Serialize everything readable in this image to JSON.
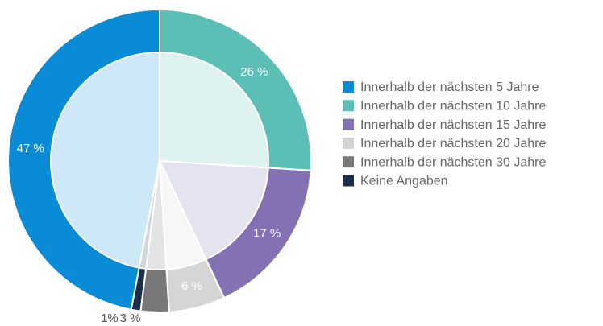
{
  "chart_data": {
    "type": "pie",
    "categories": [
      "Innerhalb der nächsten 5 Jahre",
      "Innerhalb der nächsten 10 Jahre",
      "Innerhalb der nächsten 15 Jahre",
      "Innerhalb der nächsten 20 Jahre",
      "Innerhalb der nächsten 30 Jahre",
      "Keine Angaben"
    ],
    "values": [
      47,
      26,
      17,
      6,
      3,
      1
    ],
    "value_labels": [
      "47 %",
      "26 %",
      "17 %",
      "6 %",
      "3 %",
      "1%"
    ],
    "colors": [
      "#0a8bd6",
      "#5bbfb5",
      "#8471b4",
      "#d5d5d5",
      "#787878",
      "#1d2e4a"
    ],
    "legend": "right"
  }
}
